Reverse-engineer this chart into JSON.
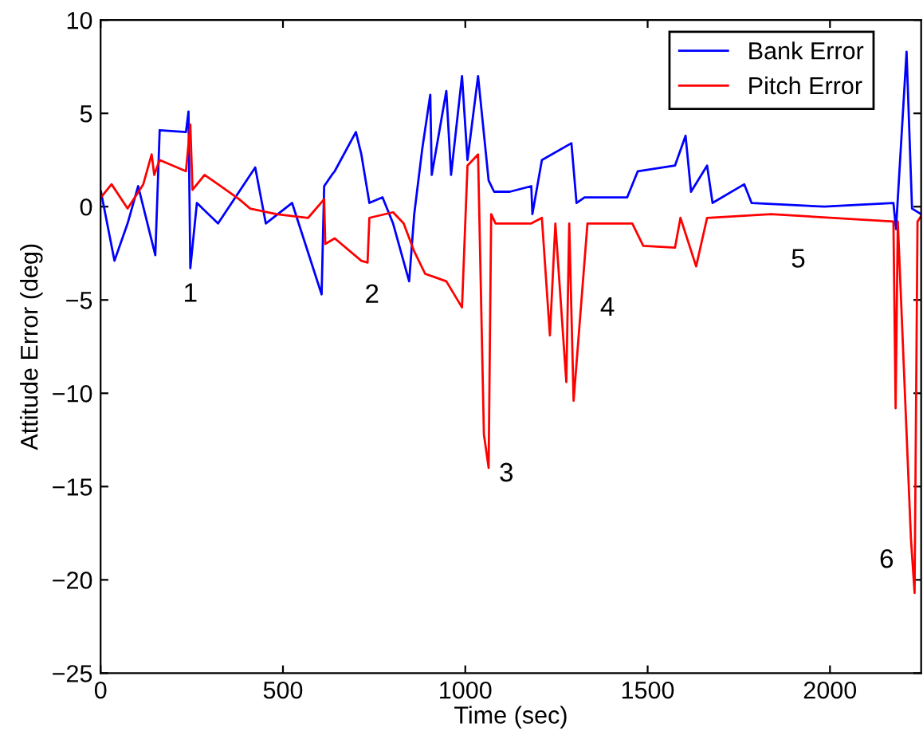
{
  "chart_data": {
    "type": "line",
    "xlabel": "Time (sec)",
    "ylabel": "Attitude Error (deg)",
    "xlim": [
      0,
      2250
    ],
    "ylim": [
      -25,
      10
    ],
    "xticks": [
      0,
      500,
      1000,
      1500,
      2000
    ],
    "yticks": [
      -25,
      -20,
      -15,
      -10,
      -5,
      0,
      5,
      10
    ],
    "grid": false,
    "legend": "top right",
    "line_style": "solid",
    "series": [
      {
        "name": "Bank Error",
        "color": "#0000ff",
        "x": [
          1,
          38,
          74,
          103,
          150,
          162,
          234,
          241,
          246,
          264,
          322,
          424,
          453,
          525,
          606,
          613,
          634,
          642,
          700,
          715,
          737,
          773,
          802,
          846,
          860,
          882,
          904,
          908,
          948,
          961,
          991,
          1006,
          1035,
          1064,
          1079,
          1122,
          1181,
          1184,
          1210,
          1291,
          1305,
          1327,
          1444,
          1473,
          1575,
          1604,
          1619,
          1663,
          1678,
          1765,
          1785,
          1985,
          2174,
          2181,
          2210,
          2225,
          2250
        ],
        "values": [
          0.8,
          -2.9,
          -0.9,
          1.1,
          -2.6,
          4.1,
          4.0,
          5.1,
          -3.3,
          0.2,
          -0.9,
          2.1,
          -0.9,
          0.2,
          -4.7,
          1.1,
          1.7,
          1.9,
          4.0,
          2.8,
          0.2,
          0.5,
          -0.9,
          -4.0,
          -0.4,
          3.1,
          6.0,
          1.7,
          6.2,
          1.7,
          7.0,
          2.5,
          7.0,
          1.4,
          0.8,
          0.8,
          1.1,
          -0.4,
          2.5,
          3.4,
          0.2,
          0.5,
          0.5,
          1.9,
          2.2,
          3.8,
          0.8,
          2.2,
          0.2,
          1.2,
          0.2,
          0.0,
          0.2,
          -1.2,
          8.3,
          -0.1,
          -0.4
        ]
      },
      {
        "name": "Pitch Error",
        "color": "#ff0000",
        "x": [
          1,
          30,
          74,
          117,
          140,
          147,
          162,
          234,
          246,
          252,
          285,
          322,
          380,
          410,
          482,
          569,
          613,
          616,
          642,
          715,
          732,
          737,
          802,
          831,
          860,
          890,
          919,
          948,
          991,
          1006,
          1035,
          1051,
          1064,
          1071,
          1083,
          1181,
          1210,
          1232,
          1247,
          1277,
          1285,
          1297,
          1335,
          1458,
          1488,
          1575,
          1590,
          1633,
          1663,
          1838,
          2174,
          2180,
          2186,
          2222,
          2232,
          2240,
          2250
        ],
        "values": [
          0.5,
          1.2,
          -0.1,
          1.2,
          2.8,
          1.7,
          2.5,
          1.9,
          4.4,
          0.9,
          1.7,
          1.2,
          0.4,
          -0.1,
          -0.4,
          -0.6,
          0.4,
          -2.0,
          -1.7,
          -2.9,
          -3.0,
          -0.6,
          -0.3,
          -0.9,
          -2.4,
          -3.6,
          -3.8,
          -4.0,
          -5.4,
          2.2,
          2.8,
          -12.2,
          -14.0,
          -0.4,
          -0.9,
          -0.9,
          -0.6,
          -6.9,
          -0.9,
          -9.4,
          -0.9,
          -10.4,
          -0.9,
          -0.9,
          -2.1,
          -2.2,
          -0.6,
          -3.2,
          -0.6,
          -0.4,
          -0.8,
          -10.8,
          -0.8,
          -17.8,
          -20.7,
          -0.8,
          -0.5
        ]
      }
    ],
    "annotations": [
      {
        "text": "1",
        "x": 246,
        "y": -3.3
      },
      {
        "text": "2",
        "x": 732,
        "y": -3.0
      },
      {
        "text": "3",
        "x": 1064,
        "y": -14.0
      },
      {
        "text": "4",
        "x": 1232,
        "y": -6.9
      },
      {
        "text": "5",
        "x": 1913,
        "y": -0.4
      },
      {
        "text": "6",
        "x": 2222,
        "y": -17.8
      }
    ]
  }
}
